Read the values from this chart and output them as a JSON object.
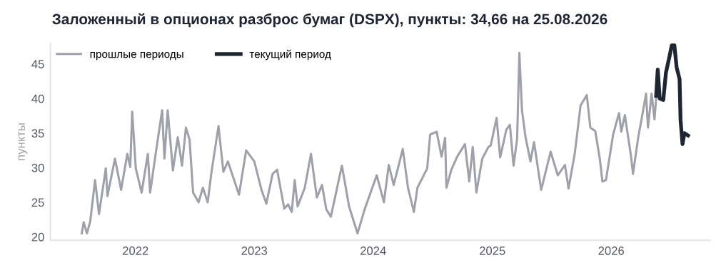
{
  "chart_data": {
    "type": "line",
    "title": "Заложенный в опционах разброс бумаг (DSPX), пункты: 34,66 на 25.08.2026",
    "ylabel": "пункты",
    "xlim": [
      "2021-04-15",
      "2026-11-01"
    ],
    "ylim": [
      19.5,
      48
    ],
    "xticks": [
      {
        "value": "2022-01-01",
        "label": "2022"
      },
      {
        "value": "2023-01-01",
        "label": "2023"
      },
      {
        "value": "2024-01-01",
        "label": "2024"
      },
      {
        "value": "2025-01-01",
        "label": "2025"
      },
      {
        "value": "2026-01-01",
        "label": "2026"
      }
    ],
    "yticks": [
      20,
      25,
      30,
      35,
      40,
      45
    ],
    "grid": false,
    "legend": "top left",
    "marker": "none",
    "line_style": "solid",
    "series": [
      {
        "name": "прошлые периоды",
        "color": "#9ea1aa",
        "x": [
          "2021-07-20",
          "2021-07-26",
          "2021-08-05",
          "2021-08-15",
          "2021-08-30",
          "2021-09-11",
          "2021-10-02",
          "2021-10-07",
          "2021-10-30",
          "2021-11-18",
          "2021-12-07",
          "2021-12-16",
          "2021-12-22",
          "2022-01-02",
          "2022-01-20",
          "2022-02-08",
          "2022-02-15",
          "2022-03-05",
          "2022-03-24",
          "2022-03-31",
          "2022-04-10",
          "2022-04-26",
          "2022-05-11",
          "2022-05-24",
          "2022-06-05",
          "2022-06-16",
          "2022-06-27",
          "2022-07-14",
          "2022-07-27",
          "2022-08-11",
          "2022-08-22",
          "2022-09-13",
          "2022-09-28",
          "2022-10-12",
          "2022-11-15",
          "2022-12-07",
          "2023-01-01",
          "2023-01-23",
          "2023-02-07",
          "2023-02-26",
          "2023-03-12",
          "2023-04-03",
          "2023-04-15",
          "2023-04-26",
          "2023-05-05",
          "2023-05-14",
          "2023-06-05",
          "2023-06-24",
          "2023-07-12",
          "2023-07-28",
          "2023-08-10",
          "2023-08-24",
          "2023-09-27",
          "2023-10-19",
          "2023-11-14",
          "2023-12-06",
          "2024-01-12",
          "2024-02-03",
          "2024-02-18",
          "2024-03-04",
          "2024-04-01",
          "2024-04-17",
          "2024-05-05",
          "2024-05-16",
          "2024-06-15",
          "2024-06-24",
          "2024-07-14",
          "2024-07-29",
          "2024-08-09",
          "2024-08-13",
          "2024-08-28",
          "2024-09-15",
          "2024-10-09",
          "2024-10-22",
          "2024-11-02",
          "2024-11-13",
          "2024-12-01",
          "2024-12-20",
          "2024-12-27",
          "2025-01-14",
          "2025-01-25",
          "2025-02-13",
          "2025-02-24",
          "2025-03-07",
          "2025-03-18",
          "2025-03-25",
          "2025-04-02",
          "2025-04-13",
          "2025-04-28",
          "2025-05-09",
          "2025-05-31",
          "2025-06-29",
          "2025-07-21",
          "2025-08-12",
          "2025-08-23",
          "2025-09-11",
          "2025-09-29",
          "2025-10-18",
          "2025-10-29",
          "2025-11-13",
          "2025-11-27",
          "2025-12-05",
          "2025-12-16",
          "2026-01-07",
          "2026-01-25",
          "2026-02-01",
          "2026-02-12",
          "2026-03-03",
          "2026-03-09",
          "2026-03-25",
          "2026-04-05",
          "2026-04-18",
          "2026-04-24",
          "2026-05-05",
          "2026-05-14",
          "2026-05-19"
        ],
        "values": [
          20.5,
          22.1,
          20.5,
          22.2,
          28.2,
          23.3,
          29.9,
          25.9,
          31.3,
          26.8,
          32.0,
          30.1,
          38.1,
          29.9,
          26.4,
          32.0,
          26.4,
          32.3,
          38.3,
          31.3,
          38.3,
          29.6,
          34.4,
          30.3,
          35.8,
          34.1,
          26.4,
          25.0,
          27.1,
          25.0,
          29.2,
          36.0,
          29.4,
          30.9,
          26.1,
          32.5,
          30.9,
          26.8,
          24.8,
          29.1,
          29.7,
          24.1,
          24.7,
          23.6,
          28.2,
          24.4,
          27.1,
          32.0,
          25.7,
          27.5,
          24.0,
          22.9,
          30.3,
          24.4,
          20.5,
          24.0,
          28.9,
          25.0,
          30.4,
          27.5,
          32.7,
          27.1,
          23.6,
          27.1,
          29.9,
          34.8,
          35.2,
          31.6,
          34.3,
          27.1,
          29.7,
          31.6,
          33.4,
          28.0,
          33.0,
          26.4,
          31.3,
          33.0,
          33.2,
          37.2,
          31.5,
          35.5,
          36.2,
          30.3,
          34.1,
          46.6,
          38.3,
          34.4,
          30.9,
          33.7,
          26.8,
          32.3,
          28.9,
          30.4,
          27.0,
          32.0,
          39.0,
          40.5,
          35.8,
          35.3,
          31.3,
          28.0,
          28.2,
          34.8,
          37.9,
          35.2,
          37.6,
          31.6,
          29.1,
          34.4,
          37.2,
          40.7,
          35.8,
          40.7,
          37.0,
          40.0
        ]
      },
      {
        "name": "текущий период",
        "color": "#1f2633",
        "x": [
          "2026-05-19",
          "2026-05-24",
          "2026-05-30",
          "2026-06-10",
          "2026-06-18",
          "2026-06-30",
          "2026-07-06",
          "2026-07-14",
          "2026-07-21",
          "2026-07-30",
          "2026-08-02",
          "2026-08-08",
          "2026-08-14",
          "2026-08-25"
        ],
        "values": [
          40.4,
          44.2,
          40.0,
          39.8,
          43.7,
          46.3,
          47.7,
          47.7,
          44.5,
          42.8,
          36.9,
          33.4,
          35.0,
          34.66
        ]
      }
    ]
  }
}
